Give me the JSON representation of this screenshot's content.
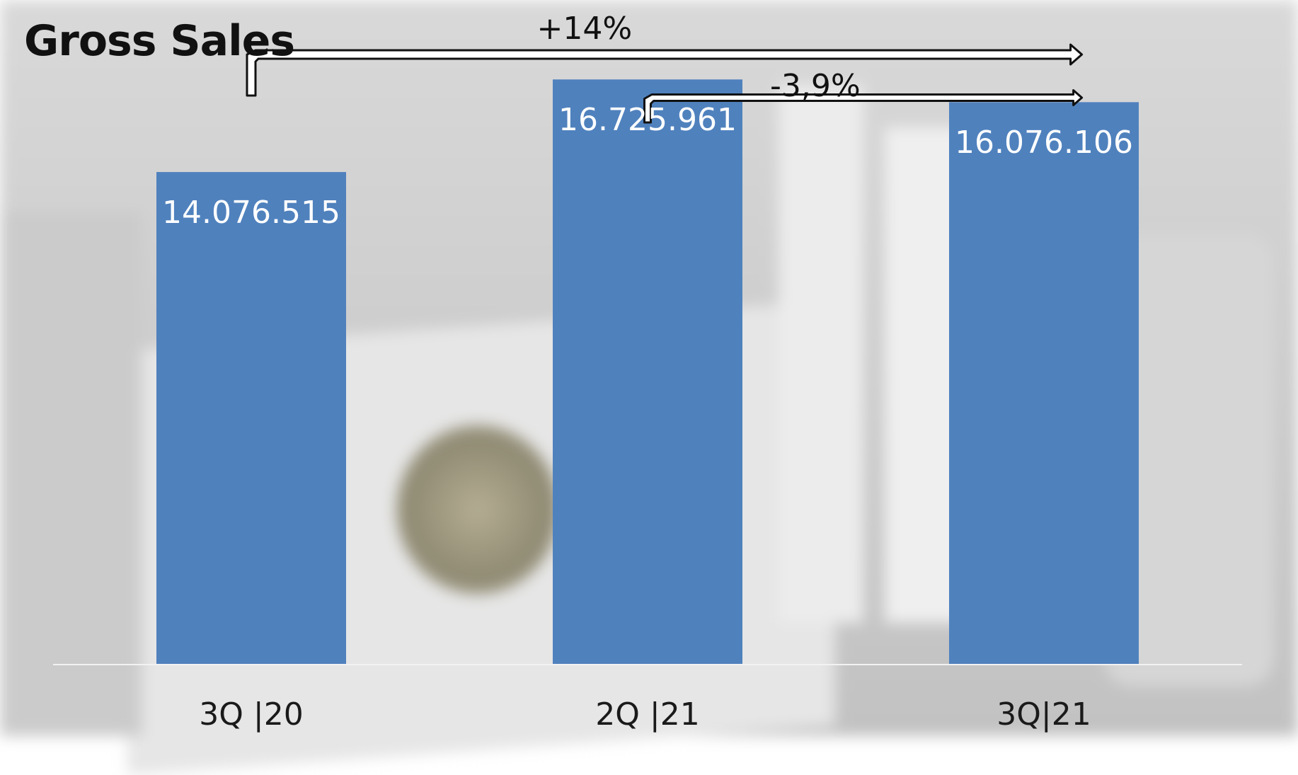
{
  "chart_data": {
    "type": "bar",
    "title": "Gross Sales",
    "xlabel": "",
    "ylabel": "",
    "categories": [
      "3Q |20",
      "2Q |21",
      "3Q|21"
    ],
    "values": [
      14076515,
      16725961,
      16076106
    ],
    "value_labels": [
      "14.076.515",
      "16.725.961",
      "16.076.106"
    ],
    "ylim": [
      0,
      19000000
    ],
    "grid": false,
    "legend": "none",
    "annotations": [
      {
        "text": "+14%",
        "from_category": "3Q |20",
        "to_category": "3Q|21"
      },
      {
        "text": "-3,9%",
        "from_category": "2Q |21",
        "to_category": "3Q|21"
      }
    ],
    "colors": {
      "bar": "#4f81bd",
      "bar_label": "#ffffff",
      "arrow_fill": "#ffffff",
      "arrow_stroke": "#111111",
      "text": "#111111"
    }
  }
}
